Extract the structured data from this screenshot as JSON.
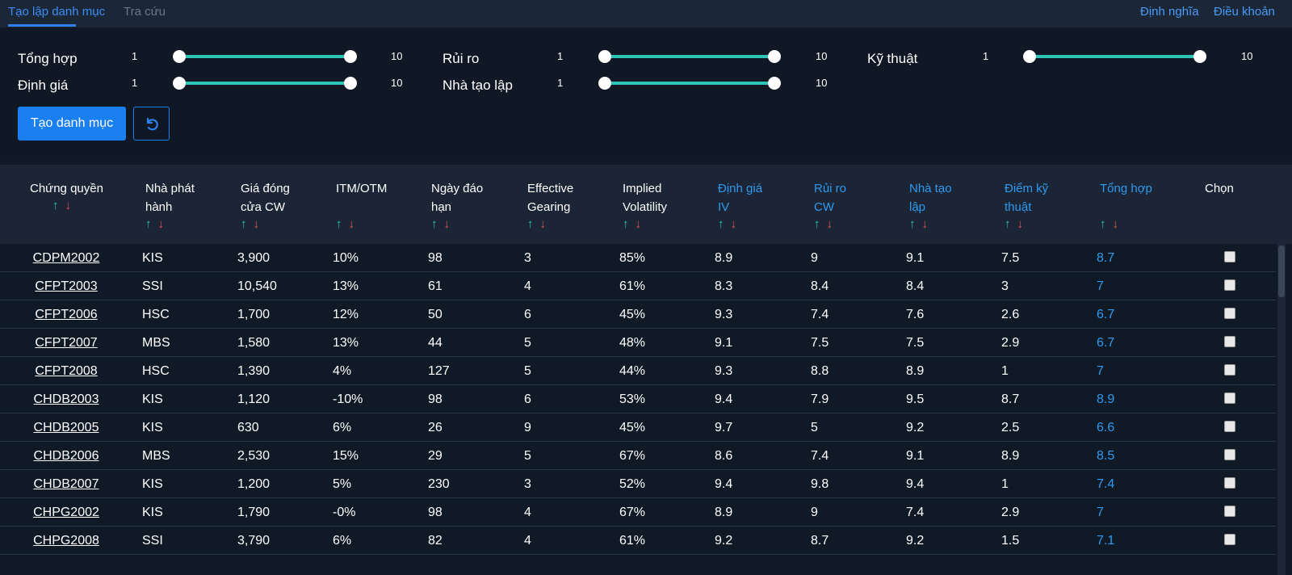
{
  "tabs": [
    {
      "label": "Tạo lập danh mục",
      "active": true
    },
    {
      "label": "Tra cứu",
      "active": false
    }
  ],
  "top_links": {
    "definition": "Định nghĩa",
    "terms": "Điều khoản"
  },
  "filters": [
    {
      "label": "Tổng hợp",
      "min": "1",
      "max": "10"
    },
    {
      "label": "Định giá",
      "min": "1",
      "max": "10"
    },
    {
      "label": "Rủi ro",
      "min": "1",
      "max": "10"
    },
    {
      "label": "Nhà tạo lập",
      "min": "1",
      "max": "10"
    },
    {
      "label": "Kỹ thuật",
      "min": "1",
      "max": "10"
    }
  ],
  "buttons": {
    "create": "Tạo danh mục",
    "reset_icon": "refresh-icon"
  },
  "sort_arrows": {
    "up": "↑",
    "down": "↓"
  },
  "columns": [
    {
      "line1": "Chứng quyền",
      "line2": "",
      "highlight": false
    },
    {
      "line1": "Nhà phát",
      "line2": "hành",
      "highlight": false
    },
    {
      "line1": "Giá đóng",
      "line2": "cửa CW",
      "highlight": false
    },
    {
      "line1": "ITM/OTM",
      "line2": "",
      "highlight": false
    },
    {
      "line1": "Ngày đáo",
      "line2": "hạn",
      "highlight": false
    },
    {
      "line1": "Effective",
      "line2": "Gearing",
      "highlight": false
    },
    {
      "line1": "Implied",
      "line2": "Volatility",
      "highlight": false
    },
    {
      "line1": "Định giá",
      "line2": "IV",
      "highlight": true
    },
    {
      "line1": "Rủi ro",
      "line2": "CW",
      "highlight": true
    },
    {
      "line1": "Nhà tạo",
      "line2": "lập",
      "highlight": true
    },
    {
      "line1": "Điểm kỹ",
      "line2": "thuật",
      "highlight": true
    },
    {
      "line1": "Tổng hợp",
      "line2": "",
      "highlight": true
    },
    {
      "line1": "Chọn",
      "line2": "",
      "highlight": false
    }
  ],
  "rows": [
    [
      "CDPM2002",
      "KIS",
      "3,900",
      "10%",
      "98",
      "3",
      "85%",
      "8.9",
      "9",
      "9.1",
      "7.5",
      "8.7"
    ],
    [
      "CFPT2003",
      "SSI",
      "10,540",
      "13%",
      "61",
      "4",
      "61%",
      "8.3",
      "8.4",
      "8.4",
      "3",
      "7"
    ],
    [
      "CFPT2006",
      "HSC",
      "1,700",
      "12%",
      "50",
      "6",
      "45%",
      "9.3",
      "7.4",
      "7.6",
      "2.6",
      "6.7"
    ],
    [
      "CFPT2007",
      "MBS",
      "1,580",
      "13%",
      "44",
      "5",
      "48%",
      "9.1",
      "7.5",
      "7.5",
      "2.9",
      "6.7"
    ],
    [
      "CFPT2008",
      "HSC",
      "1,390",
      "4%",
      "127",
      "5",
      "44%",
      "9.3",
      "8.8",
      "8.9",
      "1",
      "7"
    ],
    [
      "CHDB2003",
      "KIS",
      "1,120",
      "-10%",
      "98",
      "6",
      "53%",
      "9.4",
      "7.9",
      "9.5",
      "8.7",
      "8.9"
    ],
    [
      "CHDB2005",
      "KIS",
      "630",
      "6%",
      "26",
      "9",
      "45%",
      "9.7",
      "5",
      "9.2",
      "2.5",
      "6.6"
    ],
    [
      "CHDB2006",
      "MBS",
      "2,530",
      "15%",
      "29",
      "5",
      "67%",
      "8.6",
      "7.4",
      "9.1",
      "8.9",
      "8.5"
    ],
    [
      "CHDB2007",
      "KIS",
      "1,200",
      "5%",
      "230",
      "3",
      "52%",
      "9.4",
      "9.8",
      "9.4",
      "1",
      "7.4"
    ],
    [
      "CHPG2002",
      "KIS",
      "1,790",
      "-0%",
      "98",
      "4",
      "67%",
      "8.9",
      "9",
      "7.4",
      "2.9",
      "7"
    ],
    [
      "CHPG2008",
      "SSI",
      "3,790",
      "6%",
      "82",
      "4",
      "61%",
      "9.2",
      "8.7",
      "9.2",
      "1.5",
      "7.1"
    ]
  ],
  "colors": {
    "accent": "#1a7ff0",
    "slider": "#2ec5b6",
    "sort_up": "#2ec5b6",
    "sort_down": "#e6534f",
    "highlight_text": "#2f9aef"
  }
}
